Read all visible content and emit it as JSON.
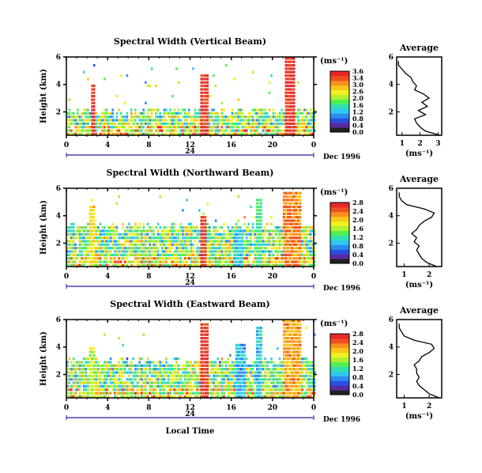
{
  "figure": {
    "date_label": "Dec 1996",
    "day_marker": "24",
    "bottom_xlabel": "Local Time",
    "height_label": "Height (km)",
    "average_title": "Average",
    "unit_label": "(ms⁻¹)"
  },
  "colorbar": {
    "colors": [
      "#202020",
      "#5a2aa0",
      "#2850e0",
      "#2a8cf0",
      "#30c8f0",
      "#30e0b0",
      "#50f050",
      "#b0f030",
      "#f0f020",
      "#f8c818",
      "#f89020",
      "#f05020",
      "#e82828"
    ]
  },
  "chart_data": [
    {
      "type": "heatmap",
      "title": "Spectral Width (Vertical Beam)",
      "x_ticks": [
        "0",
        "4",
        "8",
        "12",
        "16",
        "20",
        "0"
      ],
      "y_ticks": [
        "6",
        "4",
        "2"
      ],
      "xlim": [
        0,
        24
      ],
      "ylim": [
        0.3,
        6
      ],
      "colorbar_ticks": [
        "3.6",
        "3.4",
        "3.0",
        "2.6",
        "2.0",
        "1.6",
        "1.2",
        "0.8",
        "0.4",
        "0.0"
      ],
      "colorbar_range": [
        0,
        3.6
      ],
      "profile": {
        "xlim": [
          0.7,
          3.2
        ],
        "x_ticks": [
          "1",
          "2",
          "3"
        ],
        "y_ticks": [
          "6",
          "4",
          "2"
        ],
        "heights": [
          0.3,
          0.6,
          0.9,
          1.2,
          1.5,
          1.8,
          2.1,
          2.4,
          2.7,
          3.0,
          3.3,
          3.6,
          3.9,
          4.2,
          4.5,
          4.8,
          5.1,
          5.4,
          5.7
        ],
        "values": [
          3.1,
          2.3,
          2.0,
          1.8,
          1.7,
          2.3,
          1.9,
          2.4,
          2.1,
          2.5,
          2.2,
          1.7,
          1.8,
          1.6,
          1.5,
          1.2,
          1.0,
          0.8,
          0.8
        ]
      }
    },
    {
      "type": "heatmap",
      "title": "Spectral Width (Northward Beam)",
      "x_ticks": [
        "0",
        "4",
        "8",
        "12",
        "16",
        "20",
        "0"
      ],
      "y_ticks": [
        "6",
        "4",
        "2"
      ],
      "xlim": [
        0,
        24
      ],
      "ylim": [
        0.3,
        6
      ],
      "colorbar_ticks": [
        "2.8",
        "2.4",
        "2.0",
        "1.6",
        "1.2",
        "0.8",
        "0.4",
        "0.0"
      ],
      "colorbar_range": [
        0,
        2.8
      ],
      "profile": {
        "xlim": [
          0.7,
          2.5
        ],
        "x_ticks": [
          "1",
          "2"
        ],
        "y_ticks": [
          "6",
          "4",
          "2"
        ],
        "heights": [
          0.3,
          0.6,
          0.9,
          1.2,
          1.5,
          1.8,
          2.1,
          2.4,
          2.7,
          3.0,
          3.3,
          3.6,
          3.9,
          4.2,
          4.5,
          4.8,
          5.1,
          5.4,
          5.7
        ],
        "values": [
          2.3,
          1.9,
          1.7,
          1.6,
          1.5,
          1.6,
          1.4,
          1.5,
          1.3,
          1.5,
          1.6,
          1.8,
          2.1,
          2.2,
          1.8,
          1.1,
          0.9,
          0.8,
          0.8
        ]
      }
    },
    {
      "type": "heatmap",
      "title": "Spectral Width (Eastward Beam)",
      "x_ticks": [
        "0",
        "4",
        "8",
        "12",
        "16",
        "20",
        "0"
      ],
      "y_ticks": [
        "6",
        "4",
        "2"
      ],
      "xlim": [
        0,
        24
      ],
      "ylim": [
        0.3,
        6
      ],
      "colorbar_ticks": [
        "2.8",
        "2.4",
        "2.0",
        "1.6",
        "1.2",
        "0.8",
        "0.4",
        "0.0"
      ],
      "colorbar_range": [
        0,
        2.8
      ],
      "profile": {
        "xlim": [
          0.7,
          2.5
        ],
        "x_ticks": [
          "1",
          "2"
        ],
        "y_ticks": [
          "6",
          "4",
          "2"
        ],
        "heights": [
          0.3,
          0.6,
          0.9,
          1.2,
          1.5,
          1.8,
          2.1,
          2.4,
          2.7,
          3.0,
          3.3,
          3.6,
          3.9,
          4.2,
          4.5,
          4.8,
          5.1,
          5.4,
          5.7
        ],
        "values": [
          2.4,
          2.0,
          1.8,
          1.6,
          1.5,
          1.6,
          1.5,
          1.5,
          1.4,
          1.6,
          1.7,
          2.0,
          2.2,
          2.1,
          1.4,
          1.0,
          0.9,
          0.8,
          0.8
        ]
      }
    }
  ]
}
